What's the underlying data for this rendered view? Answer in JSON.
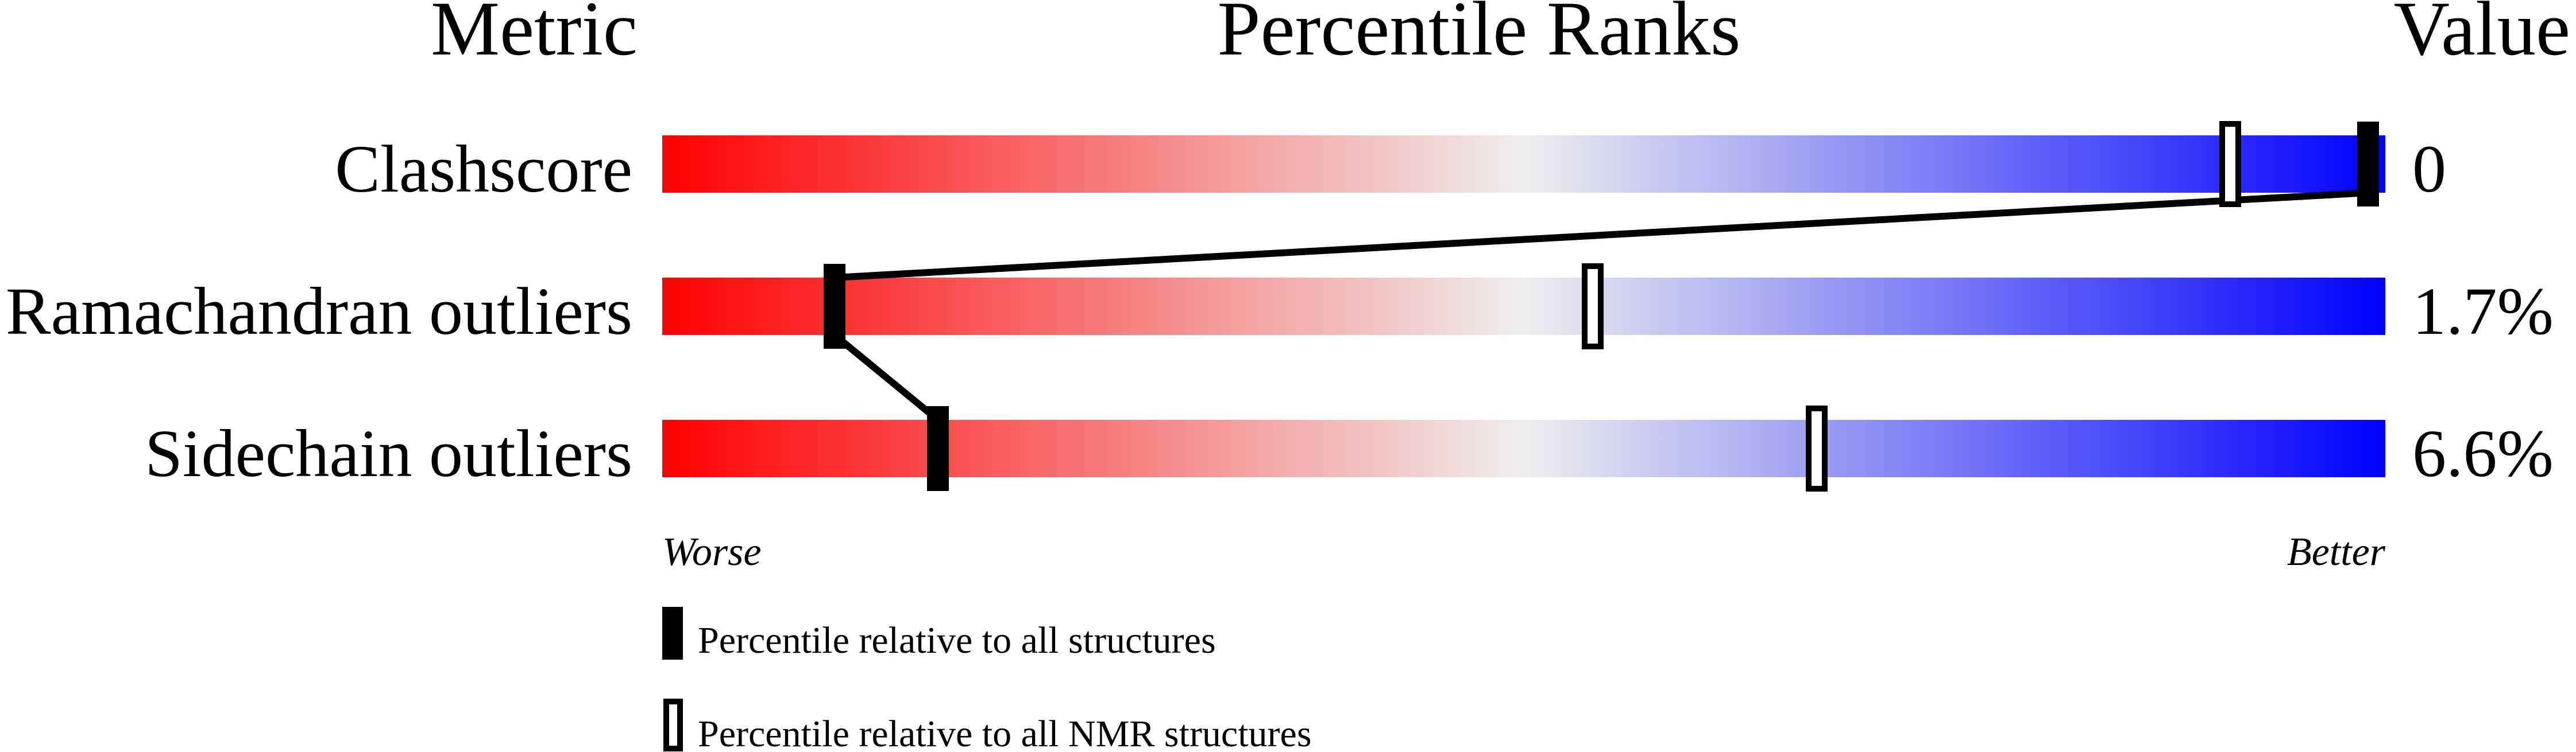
{
  "chart_data": {
    "type": "bar",
    "title": "",
    "headers": {
      "metric": "Metric",
      "ranks": "Percentile Ranks",
      "value": "Value"
    },
    "xlim": [
      0,
      100
    ],
    "metrics": [
      {
        "name": "Clashscore",
        "value": "0",
        "percentile_all": 99,
        "percentile_nmr": 91
      },
      {
        "name": "Ramachandran outliers",
        "value": "1.7%",
        "percentile_all": 10,
        "percentile_nmr": 54
      },
      {
        "name": "Sidechain outliers",
        "value": "6.6%",
        "percentile_all": 16,
        "percentile_nmr": 67
      }
    ],
    "axis_labels": {
      "left": "Worse",
      "right": "Better"
    },
    "legend": {
      "all": "Percentile relative to all structures",
      "nmr": "Percentile relative to all NMR structures",
      "placement": "bottom-left"
    },
    "colors": {
      "worse": "#ff0000",
      "middle": "#eeeeee",
      "better": "#0000ff",
      "marker": "#000000"
    }
  }
}
